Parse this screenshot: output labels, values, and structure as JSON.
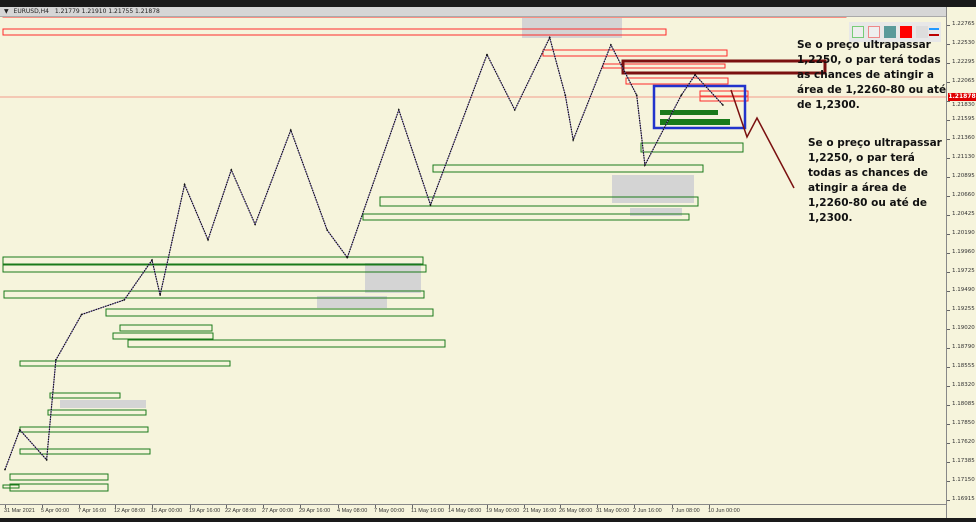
{
  "title_bar": {
    "symbol": "EURUSD,H4",
    "ohlc": "1.21779 1.21910 1.21755 1.21878"
  },
  "current_price": "1.21878",
  "toolbox": {
    "icons": [
      "green-rect-tool-icon",
      "red-rect-tool-icon",
      "teal-fill-icon",
      "red-fill-icon",
      "grey-fill-icon",
      "line-style-icon"
    ]
  },
  "notes": [
    {
      "text": "Se o preço ultrapassar 1,2250, o par terá todas as chances de atingir a área de 1,2260-80 ou até de 1,2300."
    },
    {
      "text": "Se o preço ultrapassar 1,2250, o par terá todas as chances de atingir a área de 1,2260-80 ou até de 1,2300."
    }
  ],
  "colors": {
    "background": "#f6f4dc",
    "bull_zone": "#1a7a1a",
    "bear_zone": "#ff2a2a",
    "projection": "#7a1010",
    "selection": "#2233cc",
    "zigzag": "#8a6fe0",
    "current_price": "#e00000"
  },
  "chart_data": {
    "type": "line",
    "title": "EURUSD,H4",
    "ylim": [
      1.16915,
      1.22765
    ],
    "y_ticks": [
      "1.22765",
      "1.22530",
      "1.22295",
      "1.22065",
      "1.21830",
      "1.21595",
      "1.21360",
      "1.21130",
      "1.20895",
      "1.20660",
      "1.20425",
      "1.20190",
      "1.19960",
      "1.19725",
      "1.19490",
      "1.19255",
      "1.19020",
      "1.18790",
      "1.18555",
      "1.18320",
      "1.18085",
      "1.17850",
      "1.17620",
      "1.17385",
      "1.17150",
      "1.16915"
    ],
    "x_ticks": [
      "31 Mar 2021",
      "5 Apr 00:00",
      "7 Apr 16:00",
      "12 Apr 08:00",
      "15 Apr 00:00",
      "19 Apr 16:00",
      "22 Apr 08:00",
      "27 Apr 00:00",
      "29 Apr 16:00",
      "4 May 08:00",
      "7 May 00:00",
      "11 May 16:00",
      "14 May 08:00",
      "19 May 00:00",
      "21 May 16:00",
      "26 May 08:00",
      "31 May 00:00",
      "2 Jun 16:00",
      "7 Jun 08:00",
      "10 Jun 00:00"
    ],
    "grid": false,
    "series": [
      {
        "points": [
          [
            "31 Mar 2021",
            1.1729
          ],
          [
            "2 Apr",
            1.1778
          ],
          [
            "5 Apr 08:00",
            1.1741
          ],
          [
            "6 Apr",
            1.1864
          ],
          [
            "8 Apr",
            1.192
          ],
          [
            "13 Apr",
            1.1938
          ],
          [
            "15 Apr",
            1.1987
          ],
          [
            "16 Apr",
            1.1944
          ],
          [
            "19 Apr",
            1.208
          ],
          [
            "21 Apr",
            1.2012
          ],
          [
            "23 Apr",
            1.2098
          ],
          [
            "26 Apr",
            1.2031
          ],
          [
            "29 Apr",
            1.2147
          ],
          [
            "3 May",
            1.2024
          ],
          [
            "5 May",
            1.199
          ],
          [
            "10 May",
            1.2172
          ],
          [
            "13 May",
            1.2055
          ],
          [
            "19 May",
            1.224
          ],
          [
            "21 May",
            1.2172
          ],
          [
            "25 May",
            1.2261
          ],
          [
            "27 May",
            1.219
          ],
          [
            "28 May",
            1.2135
          ],
          [
            "1 Jun",
            1.2252
          ],
          [
            "3 Jun",
            1.219
          ],
          [
            "4 Jun",
            1.2104
          ],
          [
            "8 Jun",
            1.219
          ],
          [
            "9 Jun",
            1.2215
          ],
          [
            "11 Jun",
            1.2178
          ]
        ]
      }
    ]
  }
}
